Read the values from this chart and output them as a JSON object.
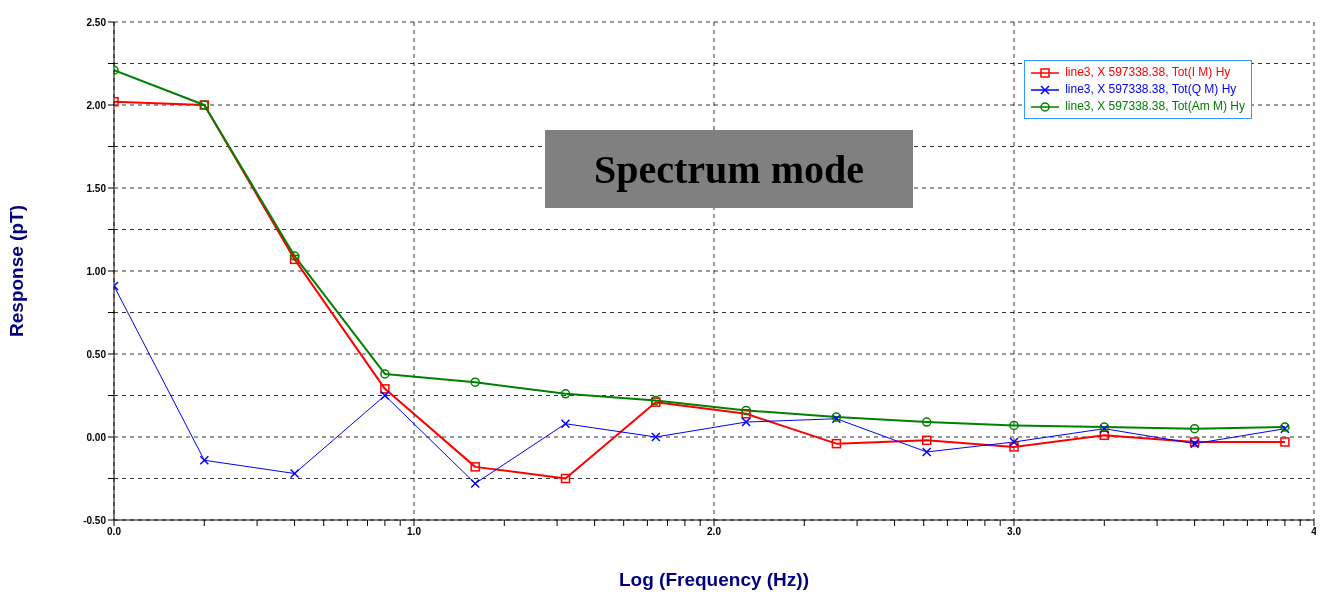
{
  "chart_data": {
    "type": "line",
    "xlabel": "Log (Frequency (Hz))",
    "ylabel": "Response (pT)",
    "annotations": [
      "Spectrum mode"
    ],
    "x": [
      0,
      0.301,
      0.602,
      0.903,
      1.204,
      1.505,
      1.806,
      2.107,
      2.408,
      2.709,
      3.0,
      3.301,
      3.602,
      3.903
    ],
    "series": [
      {
        "name": "line3, X 597338.38, Tot(I M) Hy",
        "color": "#ff0000",
        "marker": "square",
        "values": [
          2.02,
          2.0,
          1.07,
          0.29,
          -0.18,
          -0.25,
          0.21,
          0.14,
          -0.04,
          -0.02,
          -0.06,
          0.01,
          -0.03,
          -0.03
        ]
      },
      {
        "name": "line3, X 597338.38, Tot(Q M) Hy",
        "color": "#0000ff",
        "marker": "cross",
        "values": [
          0.91,
          -0.14,
          -0.22,
          0.25,
          -0.28,
          0.08,
          0.0,
          0.09,
          0.11,
          -0.09,
          -0.03,
          0.05,
          -0.04,
          0.05
        ]
      },
      {
        "name": "line3, X 597338.38, Tot(Am M) Hy",
        "color": "#008000",
        "marker": "circle",
        "values": [
          2.21,
          2.0,
          1.09,
          0.38,
          0.33,
          0.26,
          0.22,
          0.16,
          0.12,
          0.09,
          0.07,
          0.06,
          0.05,
          0.06
        ]
      }
    ],
    "xlim": [
      0,
      4
    ],
    "xticks": [
      {
        "value": 0,
        "label": "0.0"
      },
      {
        "value": 0.301,
        "label": null
      },
      {
        "value": 0.477,
        "label": null
      },
      {
        "value": 0.602,
        "label": null
      },
      {
        "value": 0.699,
        "label": null
      },
      {
        "value": 0.778,
        "label": null
      },
      {
        "value": 0.845,
        "label": null
      },
      {
        "value": 0.903,
        "label": null
      },
      {
        "value": 0.954,
        "label": null
      },
      {
        "value": 1,
        "label": "1.0"
      },
      {
        "value": 1.301,
        "label": null
      },
      {
        "value": 1.477,
        "label": null
      },
      {
        "value": 1.602,
        "label": null
      },
      {
        "value": 1.699,
        "label": null
      },
      {
        "value": 1.778,
        "label": null
      },
      {
        "value": 1.845,
        "label": null
      },
      {
        "value": 1.903,
        "label": null
      },
      {
        "value": 1.954,
        "label": null
      },
      {
        "value": 2,
        "label": "2.0"
      },
      {
        "value": 2.301,
        "label": null
      },
      {
        "value": 2.477,
        "label": null
      },
      {
        "value": 2.602,
        "label": null
      },
      {
        "value": 2.699,
        "label": null
      },
      {
        "value": 2.778,
        "label": null
      },
      {
        "value": 2.845,
        "label": null
      },
      {
        "value": 2.903,
        "label": null
      },
      {
        "value": 2.954,
        "label": null
      },
      {
        "value": 3,
        "label": "3.0"
      },
      {
        "value": 3.301,
        "label": null
      },
      {
        "value": 3.477,
        "label": null
      },
      {
        "value": 3.602,
        "label": null
      },
      {
        "value": 3.699,
        "label": null
      },
      {
        "value": 3.778,
        "label": null
      },
      {
        "value": 3.845,
        "label": null
      },
      {
        "value": 3.903,
        "label": null
      },
      {
        "value": 3.954,
        "label": null
      },
      4
    ],
    "ylim": [
      -0.5,
      2.5
    ],
    "yticks": [
      {
        "value": -0.5,
        "label": "-0.50"
      },
      {
        "value": -0.25,
        "label": null
      },
      {
        "value": 0,
        "label": "0.00"
      },
      {
        "value": 0.25,
        "label": null
      },
      {
        "value": 0.5,
        "label": "0.50"
      },
      {
        "value": 0.75,
        "label": null
      },
      {
        "value": 1,
        "label": "1.00"
      },
      {
        "value": 1.25,
        "label": null
      },
      {
        "value": 1.5,
        "label": "1.50"
      },
      {
        "value": 1.75,
        "label": null
      },
      {
        "value": 2,
        "label": "2.00"
      },
      {
        "value": 2.25,
        "label": null
      },
      {
        "value": 2.5,
        "label": "2.50"
      }
    ],
    "grid": true,
    "legend": "top right",
    "line_style": "solid"
  }
}
